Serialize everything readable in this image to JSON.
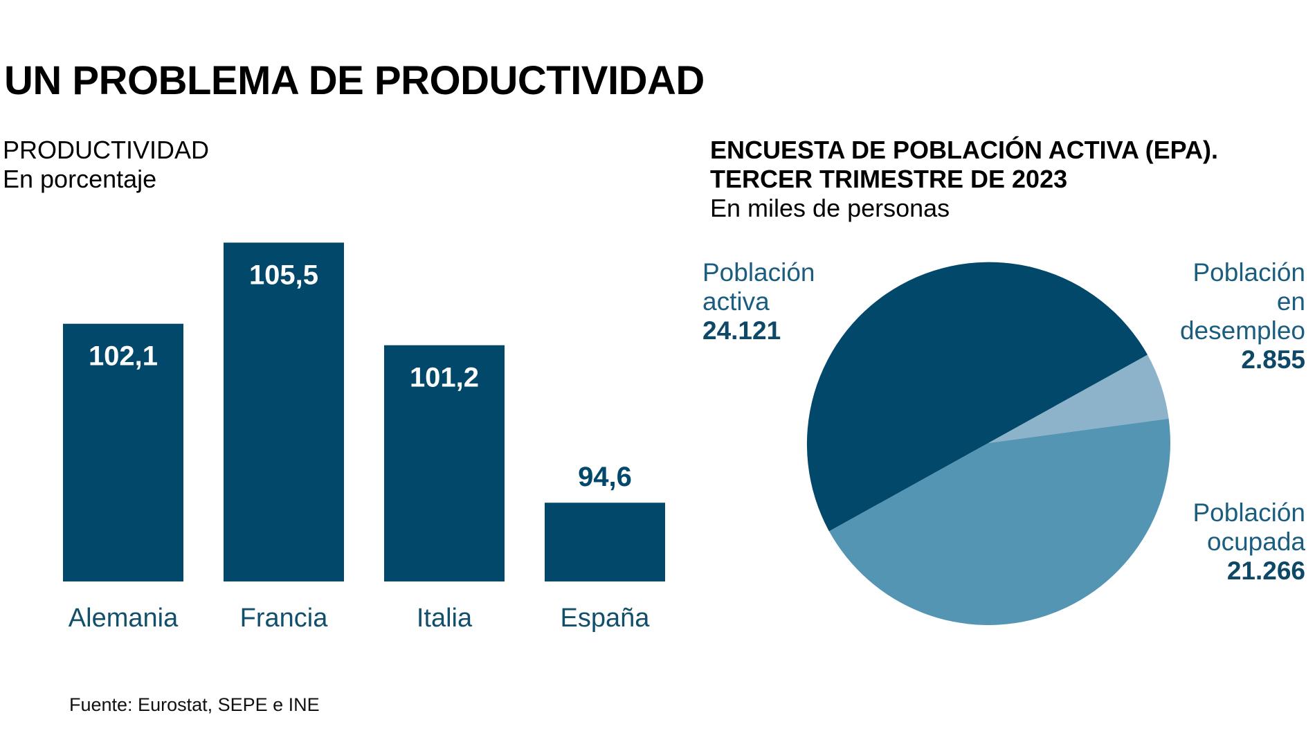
{
  "title": "UN PROBLEMA DE PRODUCTIVIDAD",
  "bar_panel": {
    "title": "PRODUCTIVIDAD",
    "subtitle": "En porcentaje"
  },
  "pie_panel": {
    "title_line1": "ENCUESTA DE POBLACIÓN ACTIVA (EPA).",
    "title_line2": "TERCER TRIMESTRE DE 2023",
    "subtitle": "En miles de personas",
    "labels": {
      "activa": {
        "line1": "Población",
        "line2": "activa",
        "value": "24.121"
      },
      "desempleo": {
        "line1": "Población",
        "line2": "en",
        "line3": "desempleo",
        "value": "2.855"
      },
      "ocupada": {
        "line1": "Población",
        "line2": "ocupada",
        "value": "21.266"
      }
    }
  },
  "source": "Fuente: Eurostat, SEPE e INE",
  "colors": {
    "bar": "#02486a",
    "bar_label_inside": "#ffffff",
    "bar_label_outside": "#02486a",
    "pie_activa": "#02486a",
    "pie_desempleo": "#8cb3c9",
    "pie_ocupada": "#5595b4"
  },
  "chart_data": [
    {
      "type": "bar",
      "title": "PRODUCTIVIDAD",
      "subtitle": "En porcentaje",
      "categories": [
        "Alemania",
        "Francia",
        "Italia",
        "España"
      ],
      "values": [
        102.1,
        105.5,
        101.2,
        94.6
      ],
      "value_labels": [
        "102,1",
        "105,5",
        "101,2",
        "94,6"
      ],
      "xlabel": "",
      "ylabel": "",
      "ylim": [
        91.3,
        106.5
      ],
      "grid": false
    },
    {
      "type": "pie",
      "title": "ENCUESTA DE POBLACIÓN ACTIVA (EPA). TERCER TRIMESTRE DE 2023",
      "subtitle": "En miles de personas",
      "slices": [
        {
          "name": "Población activa",
          "value": 24121,
          "label": "24.121"
        },
        {
          "name": "Población en desempleo",
          "value": 2855,
          "label": "2.855"
        },
        {
          "name": "Población ocupada",
          "value": 21266,
          "label": "21.266"
        }
      ]
    }
  ]
}
